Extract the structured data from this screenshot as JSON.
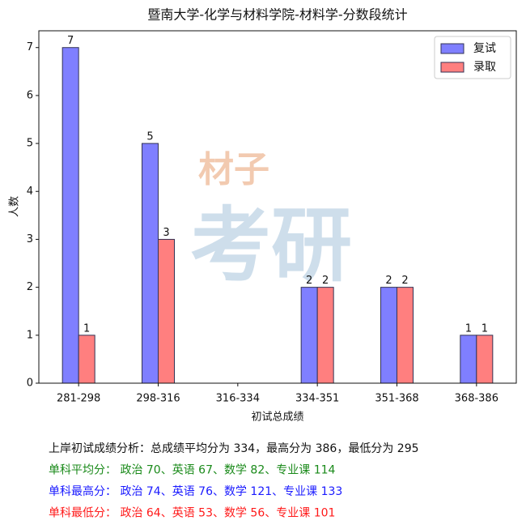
{
  "chart_data": {
    "type": "bar",
    "title": "暨南大学-化学与材料学院-材料学-分数段统计",
    "x_label": "初试总成绩",
    "y_label": "人数",
    "categories": [
      "281-298",
      "298-316",
      "316-334",
      "334-351",
      "351-368",
      "368-386"
    ],
    "series": [
      {
        "name": "复试",
        "color": "#7f7fff",
        "values": [
          7,
          5,
          0,
          2,
          2,
          1
        ]
      },
      {
        "name": "录取",
        "color": "#ff7f7f",
        "values": [
          1,
          3,
          0,
          2,
          2,
          1
        ]
      }
    ],
    "ylim": [
      0,
      7.35
    ],
    "yticks": [
      0,
      1,
      2,
      3,
      4,
      5,
      6,
      7
    ],
    "grid": false,
    "legend": "upper right",
    "watermark": [
      "材子",
      "考研"
    ],
    "annotations": [
      {
        "text": "上岸初试成绩分析：总成绩平均分为 334，最高分为 386，最低分为 295",
        "color": "#111111"
      },
      {
        "text": "单科平均分：  政治 70、英语 67、数学 82、专业课 114",
        "color": "#1a8a1a"
      },
      {
        "text": "单科最高分：  政治 74、英语 76、数学 121、专业课 133",
        "color": "#1a1aff"
      },
      {
        "text": "单科最低分：  政治 64、英语 53、数学 56、专业课 101",
        "color": "#ff1a1a"
      }
    ]
  }
}
